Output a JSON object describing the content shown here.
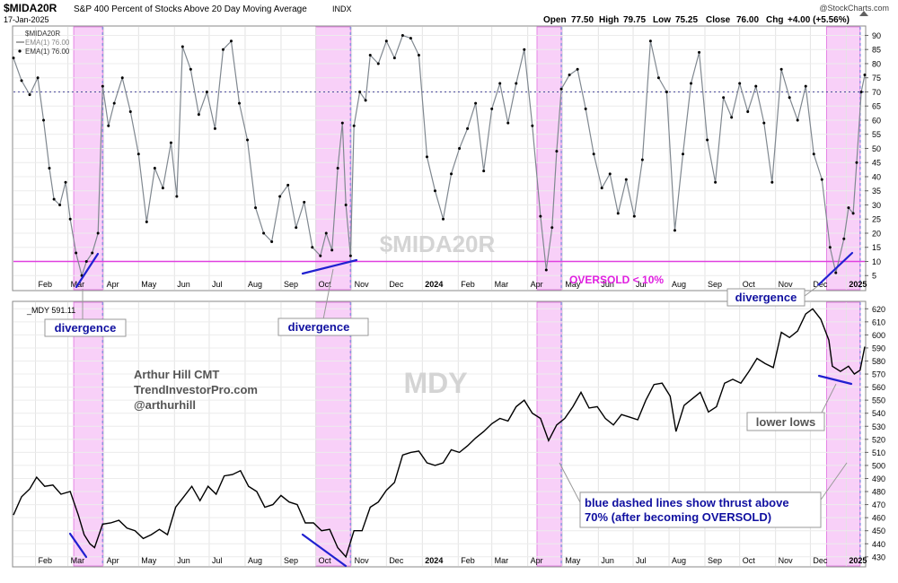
{
  "header": {
    "symbol": "$MIDA20R",
    "description": "S&P 400 Percent of Stocks Above 20 Day Moving Average",
    "exchange": "INDX",
    "date": "17-Jan-2025",
    "watermark": "@StockCharts.com",
    "ohlc": [
      {
        "label": "Open",
        "value": "77.50"
      },
      {
        "label": "High",
        "value": "79.75"
      },
      {
        "label": "Low",
        "value": "75.25"
      },
      {
        "label": "Close",
        "value": "76.00"
      },
      {
        "label": "Chg",
        "value": "+4.00 (+5.56%)"
      }
    ]
  },
  "colors": {
    "breadth_line": "#808890",
    "price_line": "#000000",
    "oversold_line": "#e040e0",
    "oversold_zone": "#f8d0f8",
    "zone_border": "#e070e0",
    "thrust_line": "#9090e0",
    "divergence_line": "#2020d0",
    "callout_text": "#1010a0"
  },
  "legend_top": [
    {
      "text": "$MIDA20R"
    },
    {
      "text": "EMA(1) 76.00"
    },
    {
      "text": "EMA(1) 76.00"
    }
  ],
  "legend_bottom": "_MDY 591.11",
  "annotations": {
    "panel_watermark_top": "$MIDA20R",
    "panel_watermark_bottom": "MDY",
    "oversold_label": "OVERSOLD < 10%",
    "author": [
      "Arthur Hill CMT",
      "TrendInvestorPro.com",
      "@arthurhill"
    ],
    "callouts": [
      {
        "id": "divergence-1",
        "text": "divergence"
      },
      {
        "id": "divergence-2",
        "text": "divergence"
      },
      {
        "id": "divergence-3",
        "text": "divergence"
      },
      {
        "id": "lower-lows",
        "text": "lower lows"
      },
      {
        "id": "thrust-note",
        "text": "blue dashed lines show thrust above 70%  (after becoming OVERSOLD)"
      }
    ]
  },
  "chart_data": [
    {
      "type": "line",
      "series": [
        {
          "name": "$MIDA20R"
        }
      ],
      "ylim": [
        0,
        93
      ],
      "yticks": [
        5,
        10,
        15,
        20,
        25,
        30,
        35,
        40,
        45,
        50,
        55,
        60,
        65,
        70,
        75,
        80,
        85,
        90
      ],
      "x_labels": [
        "Feb",
        "Mar",
        "Apr",
        "May",
        "Jun",
        "Jul",
        "Aug",
        "Sep",
        "Oct",
        "Nov",
        "Dec",
        "2024",
        "Feb",
        "Mar",
        "Apr",
        "May",
        "Jun",
        "Jul",
        "Aug",
        "Sep",
        "Oct",
        "Nov",
        "Dec",
        "2025"
      ],
      "reference_lines": [
        {
          "value": 70,
          "style": "dashed"
        },
        {
          "value": 10,
          "style": "solid"
        }
      ],
      "oversold_zones": [
        [
          "2023-03-06",
          "2023-03-31"
        ],
        [
          "2023-10-01",
          "2023-10-31"
        ],
        [
          "2024-04-09",
          "2024-04-30"
        ],
        [
          "2024-12-15",
          "2025-01-13"
        ]
      ],
      "thrust_dates": [
        "2023-03-31",
        "2023-10-31",
        "2024-04-30",
        "2025-01-13"
      ],
      "points": [
        [
          "2023-01-13",
          82
        ],
        [
          "2023-01-20",
          74
        ],
        [
          "2023-01-27",
          69
        ],
        [
          "2023-02-03",
          75
        ],
        [
          "2023-02-08",
          60
        ],
        [
          "2023-02-13",
          43
        ],
        [
          "2023-02-17",
          32
        ],
        [
          "2023-02-22",
          30
        ],
        [
          "2023-02-27",
          38
        ],
        [
          "2023-03-03",
          25
        ],
        [
          "2023-03-08",
          13
        ],
        [
          "2023-03-13",
          5
        ],
        [
          "2023-03-17",
          10
        ],
        [
          "2023-03-22",
          13
        ],
        [
          "2023-03-27",
          20
        ],
        [
          "2023-03-31",
          72
        ],
        [
          "2023-04-05",
          58
        ],
        [
          "2023-04-10",
          66
        ],
        [
          "2023-04-17",
          75
        ],
        [
          "2023-04-24",
          63
        ],
        [
          "2023-05-01",
          48
        ],
        [
          "2023-05-08",
          24
        ],
        [
          "2023-05-15",
          43
        ],
        [
          "2023-05-22",
          36
        ],
        [
          "2023-05-29",
          52
        ],
        [
          "2023-06-03",
          33
        ],
        [
          "2023-06-08",
          86
        ],
        [
          "2023-06-15",
          78
        ],
        [
          "2023-06-22",
          62
        ],
        [
          "2023-06-29",
          70
        ],
        [
          "2023-07-06",
          57
        ],
        [
          "2023-07-13",
          85
        ],
        [
          "2023-07-20",
          88
        ],
        [
          "2023-07-27",
          66
        ],
        [
          "2023-08-03",
          53
        ],
        [
          "2023-08-10",
          29
        ],
        [
          "2023-08-17",
          20
        ],
        [
          "2023-08-24",
          17
        ],
        [
          "2023-08-31",
          33
        ],
        [
          "2023-09-07",
          37
        ],
        [
          "2023-09-14",
          22
        ],
        [
          "2023-09-21",
          31
        ],
        [
          "2023-09-28",
          15
        ],
        [
          "2023-10-05",
          12
        ],
        [
          "2023-10-10",
          20
        ],
        [
          "2023-10-15",
          14
        ],
        [
          "2023-10-20",
          43
        ],
        [
          "2023-10-24",
          59
        ],
        [
          "2023-10-27",
          30
        ],
        [
          "2023-10-31",
          12
        ],
        [
          "2023-11-03",
          58
        ],
        [
          "2023-11-08",
          70
        ],
        [
          "2023-11-13",
          67
        ],
        [
          "2023-11-17",
          83
        ],
        [
          "2023-11-24",
          80
        ],
        [
          "2023-12-01",
          88
        ],
        [
          "2023-12-08",
          82
        ],
        [
          "2023-12-15",
          90
        ],
        [
          "2023-12-22",
          89
        ],
        [
          "2023-12-29",
          83
        ],
        [
          "2024-01-05",
          47
        ],
        [
          "2024-01-12",
          35
        ],
        [
          "2024-01-19",
          25
        ],
        [
          "2024-01-26",
          41
        ],
        [
          "2024-02-02",
          50
        ],
        [
          "2024-02-09",
          57
        ],
        [
          "2024-02-16",
          66
        ],
        [
          "2024-02-23",
          42
        ],
        [
          "2024-03-01",
          64
        ],
        [
          "2024-03-08",
          73
        ],
        [
          "2024-03-15",
          59
        ],
        [
          "2024-03-22",
          73
        ],
        [
          "2024-03-29",
          85
        ],
        [
          "2024-04-05",
          58
        ],
        [
          "2024-04-12",
          26
        ],
        [
          "2024-04-17",
          7
        ],
        [
          "2024-04-22",
          22
        ],
        [
          "2024-04-26",
          49
        ],
        [
          "2024-04-30",
          71
        ],
        [
          "2024-05-07",
          76
        ],
        [
          "2024-05-14",
          78
        ],
        [
          "2024-05-21",
          64
        ],
        [
          "2024-05-28",
          48
        ],
        [
          "2024-06-04",
          36
        ],
        [
          "2024-06-11",
          41
        ],
        [
          "2024-06-18",
          27
        ],
        [
          "2024-06-25",
          39
        ],
        [
          "2024-07-02",
          26
        ],
        [
          "2024-07-09",
          46
        ],
        [
          "2024-07-16",
          88
        ],
        [
          "2024-07-23",
          75
        ],
        [
          "2024-07-30",
          70
        ],
        [
          "2024-08-06",
          21
        ],
        [
          "2024-08-13",
          48
        ],
        [
          "2024-08-20",
          73
        ],
        [
          "2024-08-27",
          84
        ],
        [
          "2024-09-03",
          53
        ],
        [
          "2024-09-10",
          38
        ],
        [
          "2024-09-17",
          68
        ],
        [
          "2024-09-24",
          61
        ],
        [
          "2024-10-01",
          73
        ],
        [
          "2024-10-08",
          63
        ],
        [
          "2024-10-15",
          72
        ],
        [
          "2024-10-22",
          59
        ],
        [
          "2024-10-29",
          38
        ],
        [
          "2024-11-06",
          78
        ],
        [
          "2024-11-13",
          68
        ],
        [
          "2024-11-20",
          60
        ],
        [
          "2024-11-27",
          72
        ],
        [
          "2024-12-04",
          48
        ],
        [
          "2024-12-11",
          39
        ],
        [
          "2024-12-18",
          15
        ],
        [
          "2024-12-23",
          6
        ],
        [
          "2024-12-30",
          18
        ],
        [
          "2025-01-03",
          29
        ],
        [
          "2025-01-07",
          27
        ],
        [
          "2025-01-10",
          45
        ],
        [
          "2025-01-14",
          70
        ],
        [
          "2025-01-17",
          76
        ]
      ]
    },
    {
      "type": "line",
      "series": [
        {
          "name": "MDY"
        }
      ],
      "ylim": [
        423,
        625
      ],
      "yticks": [
        430,
        440,
        450,
        460,
        470,
        480,
        490,
        500,
        510,
        520,
        530,
        540,
        550,
        560,
        570,
        580,
        590,
        600,
        610,
        620
      ],
      "x_labels": [
        "Feb",
        "Mar",
        "Apr",
        "May",
        "Jun",
        "Jul",
        "Aug",
        "Sep",
        "Oct",
        "Nov",
        "Dec",
        "2024",
        "Feb",
        "Mar",
        "Apr",
        "May",
        "Jun",
        "Jul",
        "Aug",
        "Sep",
        "Oct",
        "Nov",
        "Dec",
        "2025"
      ],
      "points": [
        [
          "2023-01-13",
          462
        ],
        [
          "2023-01-20",
          476
        ],
        [
          "2023-01-27",
          482
        ],
        [
          "2023-02-02",
          491
        ],
        [
          "2023-02-09",
          484
        ],
        [
          "2023-02-16",
          485
        ],
        [
          "2023-02-23",
          478
        ],
        [
          "2023-03-03",
          480
        ],
        [
          "2023-03-10",
          462
        ],
        [
          "2023-03-15",
          447
        ],
        [
          "2023-03-20",
          440
        ],
        [
          "2023-03-24",
          437
        ],
        [
          "2023-03-31",
          455
        ],
        [
          "2023-04-07",
          456
        ],
        [
          "2023-04-14",
          458
        ],
        [
          "2023-04-21",
          452
        ],
        [
          "2023-04-28",
          450
        ],
        [
          "2023-05-05",
          444
        ],
        [
          "2023-05-12",
          447
        ],
        [
          "2023-05-19",
          451
        ],
        [
          "2023-05-26",
          447
        ],
        [
          "2023-06-02",
          468
        ],
        [
          "2023-06-09",
          476
        ],
        [
          "2023-06-16",
          484
        ],
        [
          "2023-06-23",
          473
        ],
        [
          "2023-06-30",
          484
        ],
        [
          "2023-07-07",
          478
        ],
        [
          "2023-07-14",
          492
        ],
        [
          "2023-07-21",
          493
        ],
        [
          "2023-07-28",
          496
        ],
        [
          "2023-08-04",
          484
        ],
        [
          "2023-08-11",
          480
        ],
        [
          "2023-08-18",
          468
        ],
        [
          "2023-08-25",
          470
        ],
        [
          "2023-09-01",
          477
        ],
        [
          "2023-09-08",
          472
        ],
        [
          "2023-09-15",
          470
        ],
        [
          "2023-09-22",
          456
        ],
        [
          "2023-09-29",
          456
        ],
        [
          "2023-10-06",
          450
        ],
        [
          "2023-10-13",
          451
        ],
        [
          "2023-10-20",
          437
        ],
        [
          "2023-10-27",
          430
        ],
        [
          "2023-11-03",
          450
        ],
        [
          "2023-11-10",
          450
        ],
        [
          "2023-11-17",
          468
        ],
        [
          "2023-11-24",
          472
        ],
        [
          "2023-12-01",
          481
        ],
        [
          "2023-12-08",
          487
        ],
        [
          "2023-12-15",
          508
        ],
        [
          "2023-12-22",
          510
        ],
        [
          "2023-12-29",
          511
        ],
        [
          "2024-01-05",
          502
        ],
        [
          "2024-01-12",
          500
        ],
        [
          "2024-01-19",
          502
        ],
        [
          "2024-01-26",
          512
        ],
        [
          "2024-02-02",
          510
        ],
        [
          "2024-02-09",
          515
        ],
        [
          "2024-02-16",
          521
        ],
        [
          "2024-02-23",
          526
        ],
        [
          "2024-03-01",
          532
        ],
        [
          "2024-03-08",
          536
        ],
        [
          "2024-03-15",
          534
        ],
        [
          "2024-03-22",
          545
        ],
        [
          "2024-03-29",
          550
        ],
        [
          "2024-04-05",
          540
        ],
        [
          "2024-04-12",
          536
        ],
        [
          "2024-04-19",
          519
        ],
        [
          "2024-04-26",
          531
        ],
        [
          "2024-05-03",
          536
        ],
        [
          "2024-05-10",
          545
        ],
        [
          "2024-05-17",
          556
        ],
        [
          "2024-05-24",
          544
        ],
        [
          "2024-05-31",
          545
        ],
        [
          "2024-06-07",
          536
        ],
        [
          "2024-06-14",
          531
        ],
        [
          "2024-06-21",
          539
        ],
        [
          "2024-06-28",
          537
        ],
        [
          "2024-07-05",
          535
        ],
        [
          "2024-07-12",
          550
        ],
        [
          "2024-07-19",
          562
        ],
        [
          "2024-07-26",
          563
        ],
        [
          "2024-08-02",
          553
        ],
        [
          "2024-08-07",
          526
        ],
        [
          "2024-08-14",
          546
        ],
        [
          "2024-08-21",
          551
        ],
        [
          "2024-08-28",
          556
        ],
        [
          "2024-09-04",
          541
        ],
        [
          "2024-09-11",
          545
        ],
        [
          "2024-09-18",
          563
        ],
        [
          "2024-09-25",
          566
        ],
        [
          "2024-10-02",
          563
        ],
        [
          "2024-10-09",
          572
        ],
        [
          "2024-10-16",
          582
        ],
        [
          "2024-10-23",
          578
        ],
        [
          "2024-10-30",
          575
        ],
        [
          "2024-11-06",
          602
        ],
        [
          "2024-11-13",
          598
        ],
        [
          "2024-11-20",
          603
        ],
        [
          "2024-11-27",
          616
        ],
        [
          "2024-12-03",
          620
        ],
        [
          "2024-12-10",
          612
        ],
        [
          "2024-12-17",
          596
        ],
        [
          "2024-12-20",
          576
        ],
        [
          "2024-12-27",
          572
        ],
        [
          "2025-01-03",
          576
        ],
        [
          "2025-01-08",
          570
        ],
        [
          "2025-01-13",
          573
        ],
        [
          "2025-01-17",
          591
        ]
      ]
    }
  ]
}
